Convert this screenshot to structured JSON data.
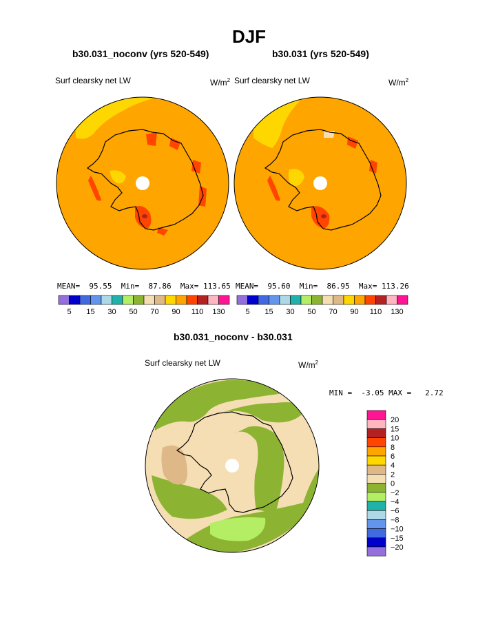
{
  "page": {
    "title": "DJF"
  },
  "panels": [
    {
      "subtitle": "b30.031_noconv (yrs 520-549)",
      "variable": "Surf clearsky net LW",
      "units_base": "W/m",
      "units_exp": "2",
      "stats": {
        "mean_label": "MEAN=",
        "mean": "95.55",
        "min_label": "Min=",
        "min": "87.86",
        "max_label": "Max=",
        "max": "113.65"
      }
    },
    {
      "subtitle": "b30.031 (yrs 520-549)",
      "variable": "Surf clearsky net LW",
      "units_base": "W/m",
      "units_exp": "2",
      "stats": {
        "mean_label": "MEAN=",
        "mean": "95.60",
        "min_label": "Min=",
        "min": "86.95",
        "max_label": "Max=",
        "max": "113.26"
      }
    }
  ],
  "abs_colorbar": {
    "colors": [
      "#9370db",
      "#0000cd",
      "#4169e1",
      "#6495ed",
      "#add8e6",
      "#20b2aa",
      "#b4ee64",
      "#8cb432",
      "#f5deb3",
      "#deb887",
      "#ffd700",
      "#ffa500",
      "#ff4500",
      "#b22222",
      "#ffb6c1",
      "#ff1493"
    ],
    "labels": [
      "5",
      "15",
      "30",
      "50",
      "70",
      "90",
      "110",
      "130"
    ]
  },
  "diff": {
    "title": "b30.031_noconv - b30.031",
    "variable": "Surf clearsky net LW",
    "units_base": "W/m",
    "units_exp": "2",
    "stats": {
      "min_label": "MIN =",
      "min": "-3.05",
      "max_label": "MAX =",
      "max": "2.72"
    }
  },
  "diff_colorbar": {
    "colors": [
      "#ff1493",
      "#ffb6c1",
      "#b22222",
      "#ff4500",
      "#ffa500",
      "#ffd700",
      "#deb887",
      "#f5deb3",
      "#8cb432",
      "#b4ee64",
      "#20b2aa",
      "#add8e6",
      "#6495ed",
      "#4169e1",
      "#0000cd",
      "#9370db"
    ],
    "labels": [
      "20",
      "15",
      "10",
      "8",
      "6",
      "4",
      "2",
      "0",
      "−2",
      "−4",
      "−6",
      "−8",
      "−10",
      "−15",
      "−20"
    ]
  },
  "colors": {
    "main_fill": "#ffa500",
    "yellow": "#ffd700",
    "red": "#ff4500",
    "tan": "#f5deb3",
    "tan_dark": "#deb887",
    "green": "#8cb432",
    "light_green": "#b4ee64",
    "pole": "#ffffff"
  }
}
